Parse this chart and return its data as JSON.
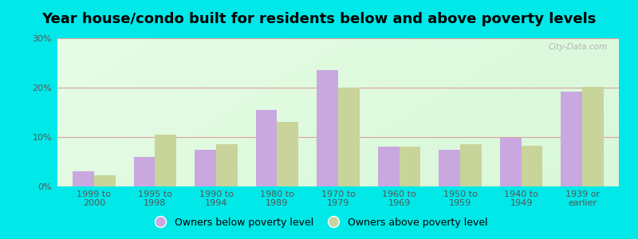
{
  "title": "Year house/condo built for residents below and above poverty levels",
  "categories": [
    "1999 to\n2000",
    "1995 to\n1998",
    "1990 to\n1994",
    "1980 to\n1989",
    "1970 to\n1979",
    "1960 to\n1969",
    "1950 to\n1959",
    "1940 to\n1949",
    "1939 or\nearlier"
  ],
  "below_poverty": [
    3.0,
    6.0,
    7.5,
    15.5,
    23.5,
    8.0,
    7.5,
    9.8,
    19.2
  ],
  "above_poverty": [
    2.2,
    10.5,
    8.5,
    13.0,
    20.0,
    8.0,
    8.5,
    8.2,
    20.2
  ],
  "below_color": "#c9a8e0",
  "above_color": "#c8d49a",
  "outer_background": "#00e8e8",
  "grid_color": "#dda0a0",
  "yticks": [
    0,
    10,
    20,
    30
  ],
  "ylim": [
    0,
    30
  ],
  "bar_width": 0.35,
  "legend_below_label": "Owners below poverty level",
  "legend_above_label": "Owners above poverty level",
  "title_fontsize": 13,
  "tick_fontsize": 8,
  "legend_fontsize": 9,
  "watermark": "City-Data.com"
}
